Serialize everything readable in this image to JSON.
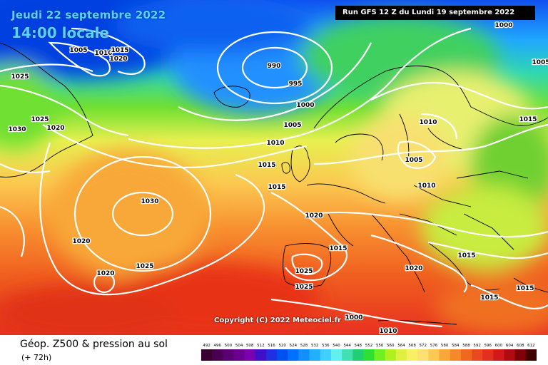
{
  "header": {
    "date": "Jeudi 22 septembre 2022",
    "local_time": "14:00 locale",
    "run": "Run GFS 12 Z du Lundi 19 septembre 2022"
  },
  "copyright": "Copyright (C) 2022 Meteociel.fr",
  "footer": {
    "title": "Géop. Z500 & pression au sol",
    "forecast": "(+ 72h)"
  },
  "scale": {
    "values": [
      492,
      496,
      500,
      504,
      508,
      512,
      516,
      520,
      524,
      528,
      532,
      536,
      540,
      544,
      548,
      552,
      556,
      560,
      564,
      568,
      572,
      576,
      580,
      584,
      588,
      592,
      596,
      600,
      604,
      608,
      612
    ],
    "colors": [
      "#3a0030",
      "#4a0050",
      "#5a0072",
      "#6a0090",
      "#7a00b0",
      "#4010c8",
      "#2030e0",
      "#0050f0",
      "#0070ff",
      "#1090ff",
      "#20b0ff",
      "#40d0ff",
      "#60f0f0",
      "#40e0b0",
      "#20d070",
      "#30e030",
      "#70f020",
      "#b0f020",
      "#e0f040",
      "#f8f060",
      "#fde070",
      "#fbc850",
      "#f8a838",
      "#f58828",
      "#f06820",
      "#ea4820",
      "#e23020",
      "#d21818",
      "#b00c10",
      "#800008",
      "#400000"
    ]
  },
  "isobars": [
    {
      "label": "990"
    },
    {
      "label": "995"
    },
    {
      "label": "1000"
    },
    {
      "label": "1005"
    },
    {
      "label": "1010"
    },
    {
      "label": "1015"
    },
    {
      "label": "1015"
    },
    {
      "label": "1020"
    },
    {
      "label": "1030"
    },
    {
      "label": "1020"
    },
    {
      "label": "1025"
    },
    {
      "label": "1020"
    },
    {
      "label": "1015"
    },
    {
      "label": "1025"
    },
    {
      "label": "1025"
    },
    {
      "label": "1020"
    },
    {
      "label": "1015"
    },
    {
      "label": "1015"
    },
    {
      "label": "1015"
    },
    {
      "label": "1015"
    },
    {
      "label": "1010"
    },
    {
      "label": "1005"
    },
    {
      "label": "1010"
    },
    {
      "label": "1005"
    },
    {
      "label": "1010"
    },
    {
      "label": "1020"
    },
    {
      "label": "1015"
    },
    {
      "label": "1025"
    },
    {
      "label": "1020"
    },
    {
      "label": "1030"
    },
    {
      "label": "1025"
    },
    {
      "label": "1000"
    },
    {
      "label": "1005"
    },
    {
      "label": "1000"
    },
    {
      "label": "1010"
    }
  ]
}
